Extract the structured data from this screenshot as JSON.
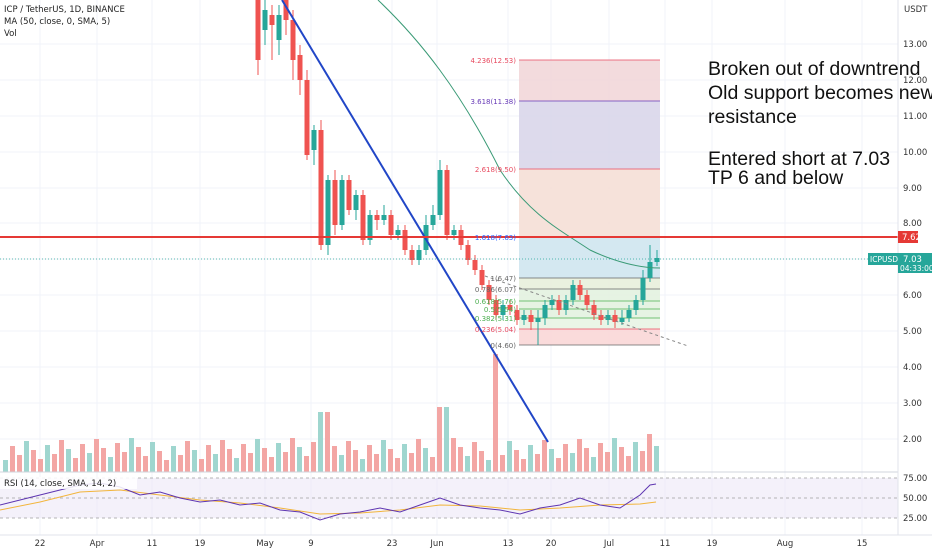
{
  "header": {
    "title": "ICP / TetherUS, 1D, BINANCE",
    "ma_label": "MA (50, close, 0, SMA, 5)",
    "vol_label": "Vol"
  },
  "price_axis": {
    "currency": "USDT",
    "ticks": [
      "13.00",
      "12.00",
      "11.00",
      "10.00",
      "9.00",
      "8.00",
      "7.00",
      "6.00",
      "5.00",
      "4.00",
      "3.00",
      "2.00"
    ],
    "resistance_label": "7.62",
    "current_symbol": "ICPUSDT",
    "current_price": "7.03",
    "countdown": "04:33:00"
  },
  "rsi": {
    "label": "RSI (14, close, SMA, 14, 2)",
    "ticks": [
      "75.00",
      "50.00",
      "25.00"
    ]
  },
  "time_axis": {
    "labels": [
      "22",
      "Apr",
      "11",
      "19",
      "May",
      "9",
      "23",
      "Jun",
      "13",
      "20",
      "Jul",
      "11",
      "19",
      "Aug",
      "15"
    ]
  },
  "fibonacci": {
    "levels": [
      {
        "label": "4.236(12.53)",
        "color": "#e84a5f"
      },
      {
        "label": "3.618(11.38)",
        "color": "#673ab7"
      },
      {
        "label": "2.618(9.50)",
        "color": "#e84a5f"
      },
      {
        "label": "1.618(7.63)",
        "color": "#2962ff"
      },
      {
        "label": "1(6.47)",
        "color": "#666666"
      },
      {
        "label": "0.786(6.07)",
        "color": "#666666"
      },
      {
        "label": "0.618(5.76)",
        "color": "#4caf50"
      },
      {
        "label": "0.5(5.54)",
        "color": "#4caf50"
      },
      {
        "label": "0.382(5.31)",
        "color": "#4caf50"
      },
      {
        "label": "0.236(5.04)",
        "color": "#e84a5f"
      },
      {
        "label": "0(4.60)",
        "color": "#666666"
      }
    ]
  },
  "annotation": {
    "lines": [
      "Broken out of downtrend",
      "Old support becomes new",
      "resistance",
      "",
      "Entered short at 7.03",
      "TP 6 and below"
    ]
  },
  "colors": {
    "up": "#26a69a",
    "down": "#ef5350",
    "trendline": "#2146c7",
    "resistance": "#e53935",
    "ma": "#3a9a76"
  }
}
